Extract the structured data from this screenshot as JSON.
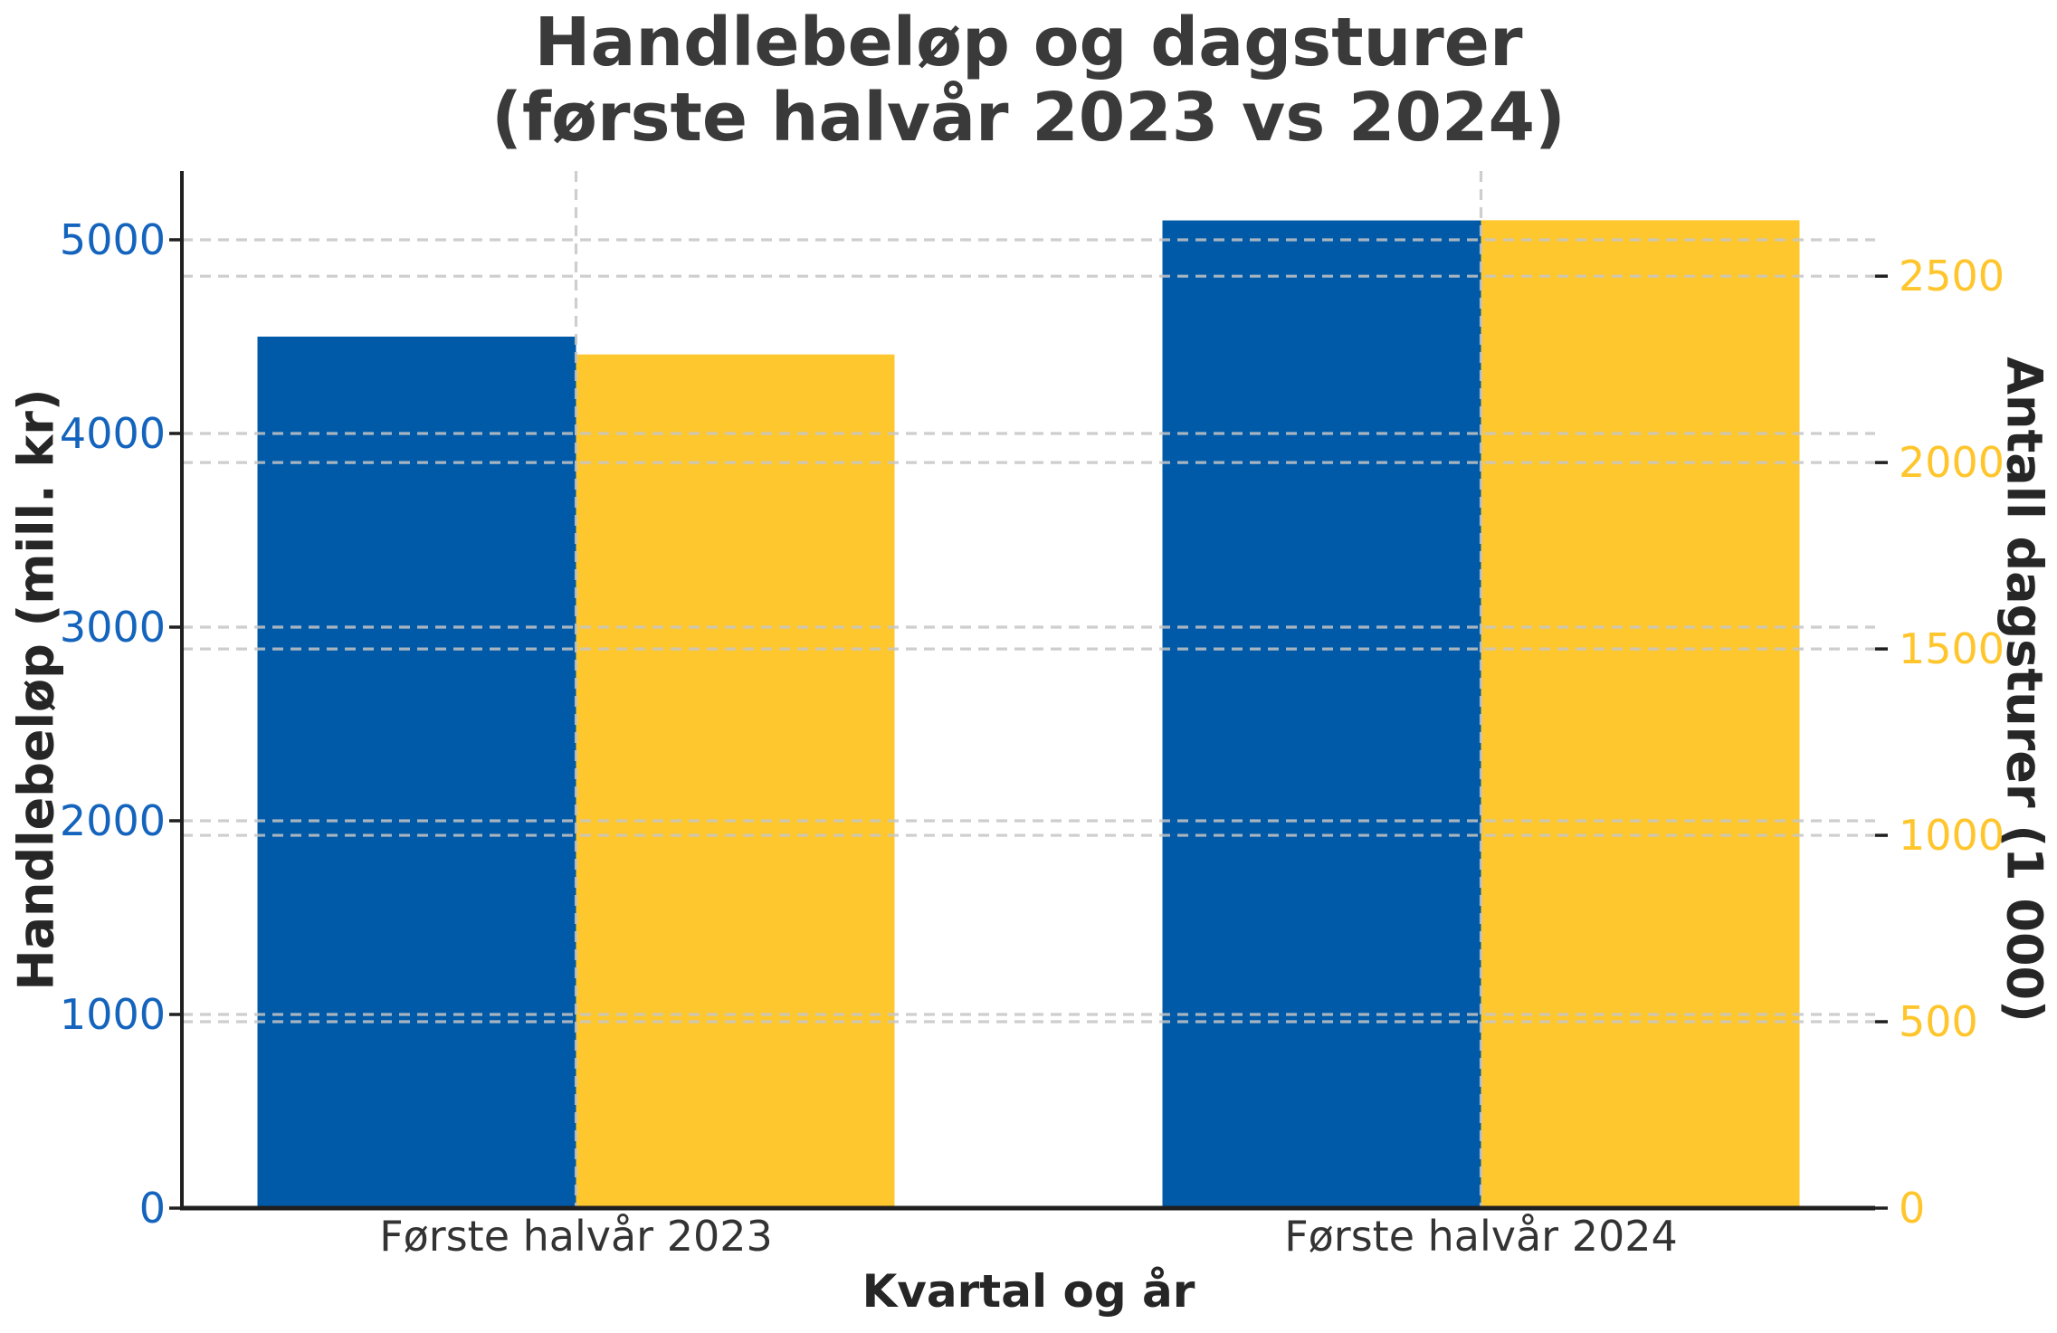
{
  "title": {
    "line1": "Handlebeløp og dagsturer",
    "line2": "(første halvår 2023 vs 2024)"
  },
  "chart_data": {
    "type": "bar",
    "categories": [
      "Første halvår 2023",
      "Første halvår 2024"
    ],
    "series": [
      {
        "name": "Handlebeløp",
        "axis": "left",
        "color": "#005AA8",
        "values": [
          4500,
          5100
        ]
      },
      {
        "name": "Antall dagsturer",
        "axis": "right",
        "color": "#FFC72E",
        "values": [
          2290,
          2650
        ]
      }
    ],
    "title": "Handlebeløp og dagsturer (første halvår 2023 vs 2024)",
    "xlabel": "Kvartal og år",
    "ylabel_left": "Handlebeløp (mill. kr)",
    "ylabel_right": "Antall dagsturer (1 000)",
    "yticks_left": {
      "values": [
        0,
        1000,
        2000,
        3000,
        4000,
        5000
      ],
      "labels": [
        "0",
        "1000",
        "2000",
        "3000",
        "4000",
        "5000"
      ]
    },
    "yticks_right": {
      "values": [
        0,
        500,
        1000,
        1500,
        2000,
        2500
      ],
      "labels": [
        "0",
        "500",
        "1000",
        "1500",
        "2000",
        "2500"
      ]
    },
    "ylim_left": [
      0,
      5355
    ],
    "ylim_right": [
      0,
      2782
    ],
    "grid": "dashed horizontal gridlines for both axes plus dashed vertical gridlines at category centers, drawn over bars",
    "legend": "none"
  },
  "colors": {
    "bar_blue": "#005AA8",
    "bar_yellow": "#FFC72E",
    "left_tick_label": "#1464BD",
    "right_tick_label": "#FFC52C",
    "title_text": "#3a3a3a",
    "axis_label_text": "#262626",
    "spine": "#1f1f1f",
    "gridline": "#c6c6c6"
  }
}
